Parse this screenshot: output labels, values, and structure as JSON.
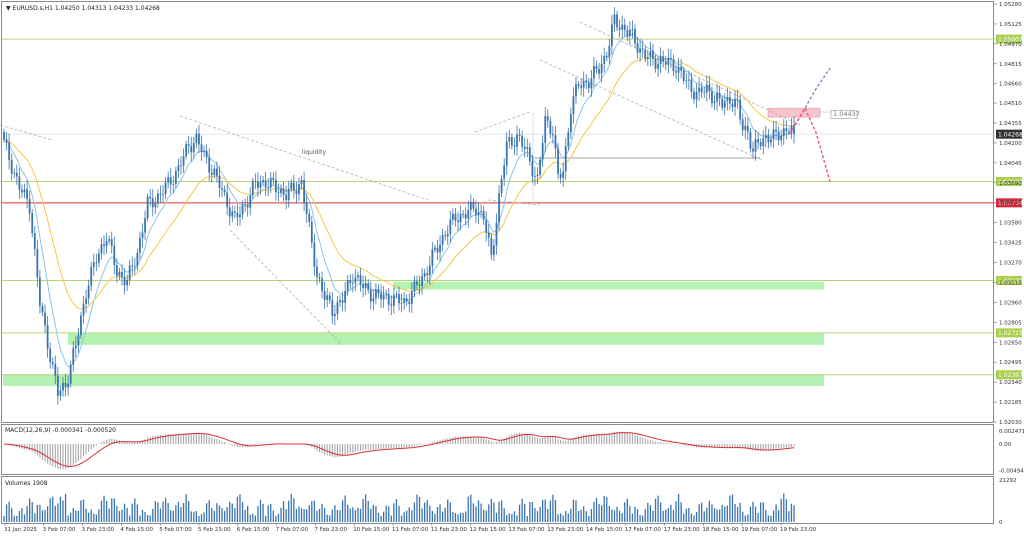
{
  "header": {
    "symbol_line": "▼ EURUSD.s,H1  1.04250 1.04313 1.04233 1.04268"
  },
  "colors": {
    "background": "#ffffff",
    "frame": "#8a8a8a",
    "candle": "#3a74b0",
    "ma_fast": "#8ec3e8",
    "ma_slow": "#f5c84a",
    "level_line": "#b9d37a",
    "level_label_bg": "#a8d04a",
    "resistance_line": "#e03030",
    "resistance_label_bg": "#d8263a",
    "current_label_bg": "#2f2f2f",
    "zone_green": "#b4f2b1",
    "zone_pink": "#f6c4cc",
    "trend_dashed": "#b0b0b0",
    "forecast_up": "#7a8eb8",
    "forecast_down": "#f0507a",
    "macd_hist": "#a8a8a8",
    "macd_signal": "#d83030",
    "volume_bar": "#3a74b0",
    "axis_text": "#333333"
  },
  "chart_data": [
    {
      "type": "candlestick",
      "name": "price",
      "title": "",
      "xlabel": "",
      "ylabel": "",
      "ylim": [
        1.0203,
        1.0528
      ],
      "y_ticks": [
        "1.05280",
        "1.05125",
        "1.04970",
        "1.04815",
        "1.04660",
        "1.04510",
        "1.04355",
        "1.04200",
        "1.04045",
        "1.03890",
        "1.03735",
        "1.03580",
        "1.03425",
        "1.03270",
        "1.03115",
        "1.02960",
        "1.02805",
        "1.02650",
        "1.02495",
        "1.02340",
        "1.02185",
        "1.02030"
      ],
      "x_ticks": [
        "31 Jan 2025",
        "3 Feb 07:00",
        "3 Feb 23:00",
        "4 Feb 15:00",
        "5 Feb 07:00",
        "5 Feb 23:00",
        "6 Feb 15:00",
        "7 Feb 07:00",
        "7 Feb 23:00",
        "10 Feb 15:00",
        "11 Feb 07:00",
        "11 Feb 23:00",
        "12 Feb 15:00",
        "13 Feb 07:00",
        "13 Feb 23:00",
        "14 Feb 15:00",
        "17 Feb 07:00",
        "17 Feb 23:00",
        "18 Feb 15:00",
        "19 Feb 07:00",
        "19 Feb 23:00"
      ],
      "close_anchors": [
        {
          "x": 0,
          "y": 1.042
        },
        {
          "x": 6,
          "y": 1.0385
        },
        {
          "x": 10,
          "y": 1.0372
        },
        {
          "x": 14,
          "y": 1.0295
        },
        {
          "x": 18,
          "y": 1.0255
        },
        {
          "x": 21,
          "y": 1.0225
        },
        {
          "x": 24,
          "y": 1.0232
        },
        {
          "x": 28,
          "y": 1.0262
        },
        {
          "x": 32,
          "y": 1.0305
        },
        {
          "x": 36,
          "y": 1.033
        },
        {
          "x": 40,
          "y": 1.0348
        },
        {
          "x": 44,
          "y": 1.032
        },
        {
          "x": 48,
          "y": 1.0312
        },
        {
          "x": 52,
          "y": 1.0335
        },
        {
          "x": 56,
          "y": 1.0372
        },
        {
          "x": 60,
          "y": 1.0378
        },
        {
          "x": 64,
          "y": 1.0388
        },
        {
          "x": 68,
          "y": 1.04
        },
        {
          "x": 72,
          "y": 1.0418
        },
        {
          "x": 75,
          "y": 1.0423
        },
        {
          "x": 78,
          "y": 1.041
        },
        {
          "x": 82,
          "y": 1.0396
        },
        {
          "x": 86,
          "y": 1.0378
        },
        {
          "x": 90,
          "y": 1.036
        },
        {
          "x": 94,
          "y": 1.0372
        },
        {
          "x": 98,
          "y": 1.0388
        },
        {
          "x": 102,
          "y": 1.039
        },
        {
          "x": 106,
          "y": 1.0385
        },
        {
          "x": 110,
          "y": 1.038
        },
        {
          "x": 114,
          "y": 1.0385
        },
        {
          "x": 116,
          "y": 1.039
        },
        {
          "x": 119,
          "y": 1.0352
        },
        {
          "x": 122,
          "y": 1.0318
        },
        {
          "x": 125,
          "y": 1.03
        },
        {
          "x": 128,
          "y": 1.029
        },
        {
          "x": 132,
          "y": 1.0298
        },
        {
          "x": 136,
          "y": 1.0318
        },
        {
          "x": 140,
          "y": 1.0308
        },
        {
          "x": 144,
          "y": 1.0302
        },
        {
          "x": 148,
          "y": 1.03
        },
        {
          "x": 152,
          "y": 1.0298
        },
        {
          "x": 156,
          "y": 1.0296
        },
        {
          "x": 160,
          "y": 1.0306
        },
        {
          "x": 164,
          "y": 1.0318
        },
        {
          "x": 168,
          "y": 1.0335
        },
        {
          "x": 172,
          "y": 1.035
        },
        {
          "x": 176,
          "y": 1.0362
        },
        {
          "x": 180,
          "y": 1.0365
        },
        {
          "x": 184,
          "y": 1.037
        },
        {
          "x": 187,
          "y": 1.0362
        },
        {
          "x": 190,
          "y": 1.033
        },
        {
          "x": 193,
          "y": 1.0378
        },
        {
          "x": 196,
          "y": 1.0418
        },
        {
          "x": 200,
          "y": 1.0425
        },
        {
          "x": 204,
          "y": 1.0412
        },
        {
          "x": 208,
          "y": 1.039
        },
        {
          "x": 211,
          "y": 1.0438
        },
        {
          "x": 214,
          "y": 1.043
        },
        {
          "x": 216,
          "y": 1.0392
        },
        {
          "x": 218,
          "y": 1.0398
        },
        {
          "x": 221,
          "y": 1.0448
        },
        {
          "x": 224,
          "y": 1.0465
        },
        {
          "x": 228,
          "y": 1.0468
        },
        {
          "x": 232,
          "y": 1.0478
        },
        {
          "x": 235,
          "y": 1.049
        },
        {
          "x": 238,
          "y": 1.0515
        },
        {
          "x": 241,
          "y": 1.051
        },
        {
          "x": 244,
          "y": 1.0505
        },
        {
          "x": 247,
          "y": 1.0496
        },
        {
          "x": 250,
          "y": 1.0488
        },
        {
          "x": 253,
          "y": 1.0484
        },
        {
          "x": 256,
          "y": 1.0484
        },
        {
          "x": 259,
          "y": 1.0482
        },
        {
          "x": 262,
          "y": 1.048
        },
        {
          "x": 265,
          "y": 1.047
        },
        {
          "x": 268,
          "y": 1.0462
        },
        {
          "x": 271,
          "y": 1.0458
        },
        {
          "x": 274,
          "y": 1.0462
        },
        {
          "x": 277,
          "y": 1.0455
        },
        {
          "x": 280,
          "y": 1.045
        },
        {
          "x": 283,
          "y": 1.0455
        },
        {
          "x": 286,
          "y": 1.0448
        },
        {
          "x": 288,
          "y": 1.0432
        },
        {
          "x": 290,
          "y": 1.043
        },
        {
          "x": 292,
          "y": 1.0412
        },
        {
          "x": 294,
          "y": 1.042
        },
        {
          "x": 297,
          "y": 1.0425
        },
        {
          "x": 300,
          "y": 1.0424
        },
        {
          "x": 303,
          "y": 1.0428
        },
        {
          "x": 306,
          "y": 1.0432
        },
        {
          "x": 308,
          "y": 1.0427
        }
      ],
      "forecast_up": [
        [
          1.0427,
          1.0447,
          1.0462,
          1.0478
        ]
      ],
      "forecast_down": [
        [
          1.0427,
          1.0447,
          1.0428,
          1.039
        ]
      ],
      "annotations": [
        {
          "type": "text",
          "text": "liquidity"
        },
        {
          "type": "price_label",
          "text": "1.04437"
        }
      ]
    },
    {
      "type": "macd",
      "name": "MACD(12,26,9)",
      "values": [
        -0.000341,
        -0.00052
      ],
      "y_ticks": [
        "0.002471",
        "0.00",
        "-0.004942"
      ],
      "ylim": [
        -0.0052,
        0.003
      ]
    },
    {
      "type": "bar",
      "name": "Volumes",
      "label_value": "1908",
      "y_ticks": [
        "21292",
        "0"
      ],
      "ylim": [
        0,
        21292
      ]
    }
  ],
  "levels": [
    {
      "price": "1.05007",
      "value": 1.05007,
      "kind": "green"
    },
    {
      "price": "1.03900",
      "value": 1.039,
      "kind": "green"
    },
    {
      "price": "1.03734",
      "value": 1.03734,
      "kind": "red"
    },
    {
      "price": "1.03130",
      "value": 1.0313,
      "kind": "green"
    },
    {
      "price": "1.02723",
      "value": 1.02723,
      "kind": "green"
    },
    {
      "price": "1.02397",
      "value": 1.02397,
      "kind": "green"
    }
  ],
  "zones": [
    {
      "kind": "green",
      "from_price": 1.0306,
      "to_price": 1.0312
    },
    {
      "kind": "green",
      "from_price": 1.0263,
      "to_price": 1.0272
    },
    {
      "kind": "green",
      "from_price": 1.0231,
      "to_price": 1.024
    },
    {
      "kind": "pink",
      "from_price": 1.044,
      "to_price": 1.0447
    }
  ],
  "current_price": {
    "label": "1.04268",
    "value": 1.04268
  },
  "macd_label": "MACD(12,26,9) -0.000341 -0.000520",
  "volume_label": "Volumes 1908"
}
